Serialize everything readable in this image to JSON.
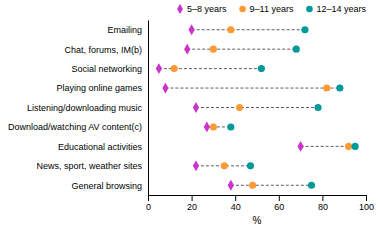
{
  "chart_data": {
    "type": "dot",
    "orientation": "horizontal",
    "categories": [
      "Emailing",
      "Chat, forums, IM(b)",
      "Social networking",
      "Playing online games",
      "Listening/downloading music",
      "Download/watching AV content(c)",
      "Educational activities",
      "News, sport, weather sites",
      "General browsing"
    ],
    "series": [
      {
        "name": "5–8 years",
        "color": "#cc33cc",
        "marker": "diamond",
        "values": [
          20,
          18,
          5,
          8,
          22,
          27,
          70,
          22,
          38
        ]
      },
      {
        "name": "9–11 years",
        "color": "#ff9933",
        "marker": "circle",
        "values": [
          38,
          30,
          12,
          82,
          42,
          30,
          92,
          35,
          48
        ]
      },
      {
        "name": "12–14 years",
        "color": "#009999",
        "marker": "circle",
        "values": [
          72,
          68,
          52,
          88,
          78,
          38,
          95,
          47,
          75
        ]
      }
    ],
    "xlabel": "%",
    "xlim": [
      0,
      100
    ],
    "xticks": [
      0,
      20,
      40,
      60,
      80,
      100
    ],
    "legend": "top",
    "grid": false
  }
}
